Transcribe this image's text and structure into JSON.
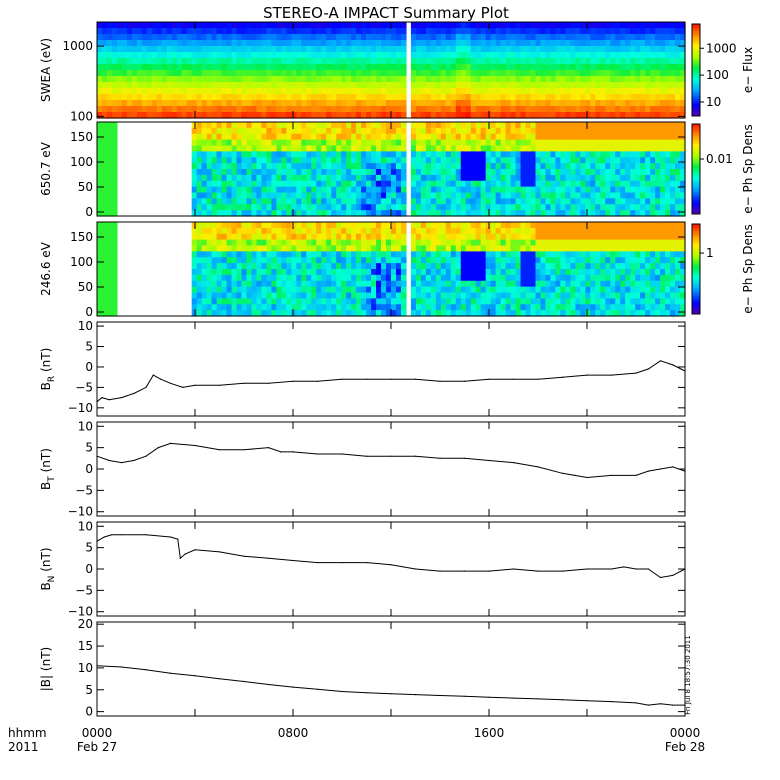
{
  "title": "STEREO-A IMPACT Summary Plot",
  "stamp": "Fri Jul  8 18:57:30 2011",
  "x_axis": {
    "row1_label": "hhmm",
    "row2_label": "2011",
    "ticks": [
      {
        "hour": 0,
        "label": "0000",
        "sublabel": "Feb 27"
      },
      {
        "hour": 8,
        "label": "0800",
        "sublabel": ""
      },
      {
        "hour": 16,
        "label": "1600",
        "sublabel": ""
      },
      {
        "hour": 24,
        "label": "0000",
        "sublabel": "Feb 28"
      }
    ],
    "range_hours": [
      0,
      24
    ]
  },
  "colors": {
    "line": "#000000",
    "gap": "#ffffff",
    "axis": "#000000"
  },
  "chart_data": [
    {
      "type": "heatmap",
      "ylabel": "SWEA (eV)",
      "ylog": true,
      "ylim": [
        95,
        2200
      ],
      "yticks": [
        {
          "value": 100,
          "label": "100"
        },
        {
          "value": 1000,
          "label": "1000"
        }
      ],
      "colorbar": {
        "label": "e− Flux",
        "log": true,
        "range": [
          3,
          8000
        ],
        "ticks": [
          {
            "value": 10,
            "label": "10"
          },
          {
            "value": 100,
            "label": "100"
          },
          {
            "value": 1000,
            "label": "1000"
          }
        ]
      },
      "data_gaps_hours": [
        [
          12.55,
          12.75
        ]
      ]
    },
    {
      "type": "heatmap",
      "ylabel": "650.7 eV",
      "ylim": [
        -8,
        180
      ],
      "yticks": [
        {
          "value": 0,
          "label": "0"
        },
        {
          "value": 50,
          "label": "50"
        },
        {
          "value": 100,
          "label": "100"
        },
        {
          "value": 150,
          "label": "150"
        }
      ],
      "colorbar": {
        "label": "e− Ph Sp Dens",
        "log": true,
        "range": [
          0.0008,
          0.05
        ],
        "ticks": [
          {
            "value": 0.01,
            "label": "0.01"
          }
        ]
      },
      "data_gaps_hours": [
        [
          0.9,
          3.9
        ],
        [
          12.55,
          12.75
        ]
      ]
    },
    {
      "type": "heatmap",
      "ylabel": "246.6 eV",
      "ylim": [
        -8,
        180
      ],
      "yticks": [
        {
          "value": 0,
          "label": "0"
        },
        {
          "value": 50,
          "label": "50"
        },
        {
          "value": 100,
          "label": "100"
        },
        {
          "value": 150,
          "label": "150"
        }
      ],
      "colorbar": {
        "label": "e− Ph Sp Dens",
        "log": true,
        "range": [
          0.1,
          3
        ],
        "ticks": [
          {
            "value": 1,
            "label": "1"
          }
        ]
      },
      "data_gaps_hours": [
        [
          0.9,
          3.9
        ],
        [
          12.55,
          12.75
        ]
      ]
    },
    {
      "type": "line",
      "ylabel": "B",
      "ylabel_sub": "R",
      "ylabel_unit": " (nT)",
      "ylim": [
        -12,
        11
      ],
      "yticks": [
        {
          "value": -10,
          "label": "−10"
        },
        {
          "value": -5,
          "label": "−5"
        },
        {
          "value": 0,
          "label": "0"
        },
        {
          "value": 5,
          "label": "5"
        },
        {
          "value": 10,
          "label": "10"
        }
      ],
      "x": [
        0,
        0.2,
        0.5,
        1,
        1.5,
        2,
        2.3,
        2.6,
        3,
        3.5,
        4,
        5,
        6,
        7,
        8,
        9,
        10,
        11,
        12,
        13,
        14,
        15,
        16,
        17,
        18,
        19,
        20,
        21,
        22,
        22.5,
        23,
        23.5,
        24
      ],
      "y": [
        -8.5,
        -7.5,
        -8,
        -7.5,
        -6.5,
        -5,
        -2,
        -3,
        -4,
        -5,
        -4.5,
        -4.5,
        -4,
        -4,
        -3.5,
        -3.5,
        -3,
        -3,
        -3,
        -3,
        -3.5,
        -3.5,
        -3,
        -3,
        -3,
        -2.5,
        -2,
        -2,
        -1.5,
        -0.5,
        1.5,
        0.5,
        -1
      ]
    },
    {
      "type": "line",
      "ylabel": "B",
      "ylabel_sub": "T",
      "ylabel_unit": " (nT)",
      "ylim": [
        -11,
        11
      ],
      "yticks": [
        {
          "value": -10,
          "label": "−10"
        },
        {
          "value": -5,
          "label": "−5"
        },
        {
          "value": 0,
          "label": "0"
        },
        {
          "value": 5,
          "label": "5"
        },
        {
          "value": 10,
          "label": "10"
        }
      ],
      "x": [
        0,
        0.5,
        1,
        1.5,
        2,
        2.5,
        3,
        4,
        5,
        6,
        7,
        7.5,
        8,
        9,
        10,
        11,
        12,
        13,
        14,
        15,
        16,
        17,
        18,
        19,
        19.5,
        20,
        21,
        22,
        22.5,
        23,
        23.5,
        24
      ],
      "y": [
        3,
        2,
        1.5,
        2,
        3,
        5,
        6,
        5.5,
        4.5,
        4.5,
        5,
        4,
        4,
        3.5,
        3.5,
        3,
        3,
        3,
        2.5,
        2.5,
        2,
        1.5,
        0.5,
        -1,
        -1.5,
        -2,
        -1.5,
        -1.5,
        -0.5,
        0,
        0.5,
        -0.5
      ]
    },
    {
      "type": "line",
      "ylabel": "B",
      "ylabel_sub": "N",
      "ylabel_unit": " (nT)",
      "ylim": [
        -11,
        11
      ],
      "yticks": [
        {
          "value": -10,
          "label": "−10"
        },
        {
          "value": -5,
          "label": "−5"
        },
        {
          "value": 0,
          "label": "0"
        },
        {
          "value": 5,
          "label": "5"
        },
        {
          "value": 10,
          "label": "10"
        }
      ],
      "x": [
        0,
        0.3,
        0.6,
        1,
        2,
        3,
        3.3,
        3.4,
        3.6,
        4,
        5,
        6,
        7,
        8,
        9,
        10,
        11,
        12,
        13,
        14,
        15,
        16,
        17,
        18,
        19,
        20,
        21,
        21.5,
        22,
        22.5,
        23,
        23.5,
        24
      ],
      "y": [
        6.5,
        7.5,
        8,
        8,
        8,
        7.5,
        7,
        2.5,
        3.5,
        4.5,
        4,
        3,
        2.5,
        2,
        1.5,
        1.5,
        1.5,
        1,
        0,
        -0.5,
        -0.5,
        -0.5,
        0,
        -0.5,
        -0.5,
        0,
        0,
        0.5,
        0,
        0,
        -2,
        -1.5,
        0
      ]
    },
    {
      "type": "line",
      "ylabel": "|B|",
      "ylabel_sub": "",
      "ylabel_unit": " (nT)",
      "ylim": [
        -1,
        20.5
      ],
      "yticks": [
        {
          "value": 0,
          "label": "0"
        },
        {
          "value": 5,
          "label": "5"
        },
        {
          "value": 10,
          "label": "10"
        },
        {
          "value": 15,
          "label": "15"
        },
        {
          "value": 20,
          "label": "20"
        }
      ],
      "x": [
        0,
        1,
        2,
        3,
        4,
        5,
        6,
        7,
        8,
        9,
        10,
        11,
        12,
        13,
        14,
        15,
        16,
        17,
        18,
        19,
        20,
        21,
        22,
        22.5,
        23,
        23.5,
        24
      ],
      "y": [
        10.5,
        10.2,
        9.6,
        8.8,
        8.2,
        7.5,
        6.9,
        6.2,
        5.6,
        5.1,
        4.6,
        4.3,
        4.1,
        3.9,
        3.7,
        3.5,
        3.3,
        3.1,
        2.9,
        2.7,
        2.5,
        2.3,
        2.0,
        1.5,
        1.8,
        1.5,
        1.5
      ]
    }
  ]
}
